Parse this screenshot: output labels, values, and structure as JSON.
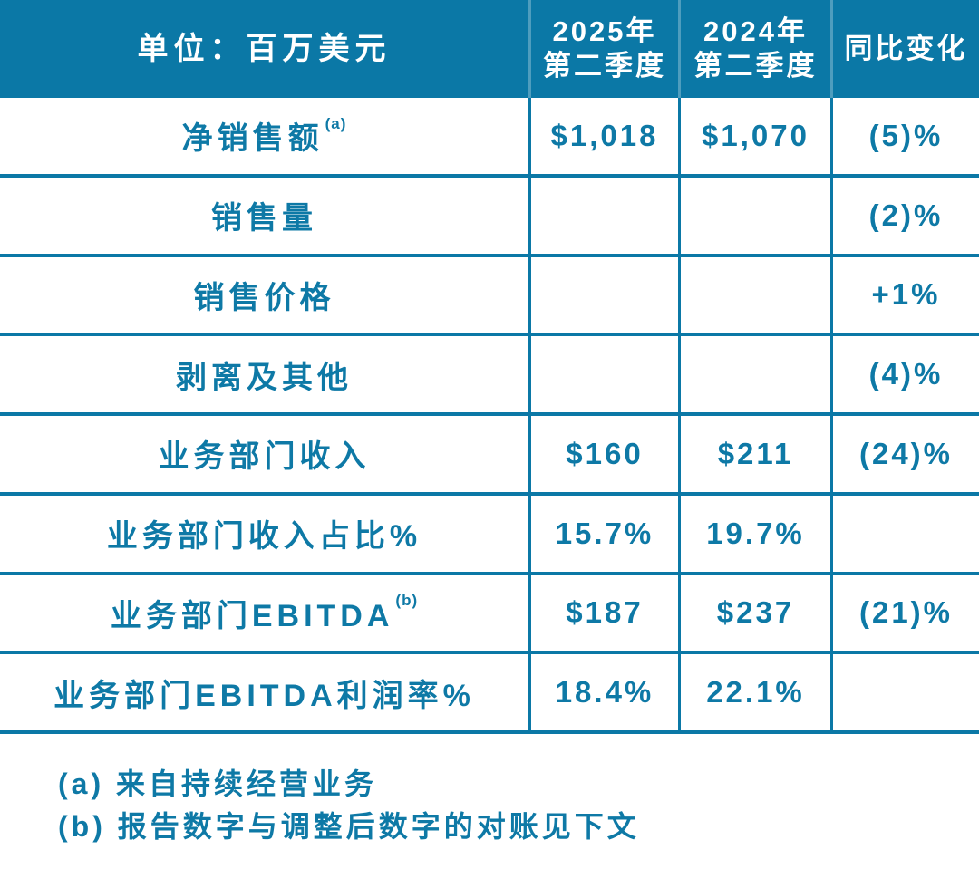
{
  "accent_color": "#0b78a6",
  "header_text_color": "#ffffff",
  "body_text_color": "#0e79a6",
  "table": {
    "header": {
      "unit_label": "单位：百万美元",
      "col_2025_line1": "2025年",
      "col_2025_line2": "第二季度",
      "col_2024_line1": "2024年",
      "col_2024_line2": "第二季度",
      "col_yoy": "同比变化"
    },
    "rows": [
      {
        "label": "净销售额",
        "sup": "(a)",
        "v2025": "$1,018",
        "v2024": "$1,070",
        "yoy": "(5)%"
      },
      {
        "label": "销售量",
        "sup": "",
        "v2025": "",
        "v2024": "",
        "yoy": "(2)%"
      },
      {
        "label": "销售价格",
        "sup": "",
        "v2025": "",
        "v2024": "",
        "yoy": "+1%"
      },
      {
        "label": "剥离及其他",
        "sup": "",
        "v2025": "",
        "v2024": "",
        "yoy": "(4)%"
      },
      {
        "label": "业务部门收入",
        "sup": "",
        "v2025": "$160",
        "v2024": "$211",
        "yoy": "(24)%"
      },
      {
        "label": "业务部门收入占比%",
        "sup": "",
        "v2025": "15.7%",
        "v2024": "19.7%",
        "yoy": ""
      },
      {
        "label": "业务部门EBITDA",
        "sup": "(b)",
        "v2025": "$187",
        "v2024": "$237",
        "yoy": "(21)%"
      },
      {
        "label": "业务部门EBITDA利润率%",
        "sup": "",
        "v2025": "18.4%",
        "v2024": "22.1%",
        "yoy": ""
      }
    ]
  },
  "footnotes": [
    "(a) 来自持续经营业务",
    "(b) 报告数字与调整后数字的对账见下文"
  ]
}
